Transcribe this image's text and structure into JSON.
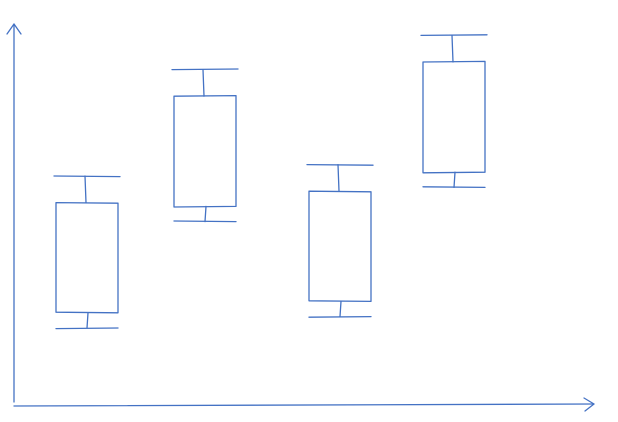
{
  "style": {
    "ink_color": "#4472c4",
    "background": "#ffffff"
  },
  "chart_data": {
    "type": "boxplot",
    "title": "",
    "xlabel": "",
    "ylabel": "",
    "grid": false,
    "legend": "none",
    "axis_style": "hand-drawn arrows",
    "categories": [
      "",
      "",
      "",
      ""
    ],
    "series": [
      {
        "boxes": [
          {
            "whisker_high": 60,
            "q3": 53,
            "q1": 24,
            "whisker_low": 20
          },
          {
            "whisker_high": 88,
            "q3": 81,
            "q1": 52,
            "whisker_low": 48
          },
          {
            "whisker_high": 63,
            "q3": 56,
            "q1": 27,
            "whisker_low": 23
          },
          {
            "whisker_high": 97,
            "q3": 90,
            "q1": 61,
            "whisker_low": 57
          }
        ]
      }
    ],
    "ylim": [
      0,
      100
    ]
  }
}
